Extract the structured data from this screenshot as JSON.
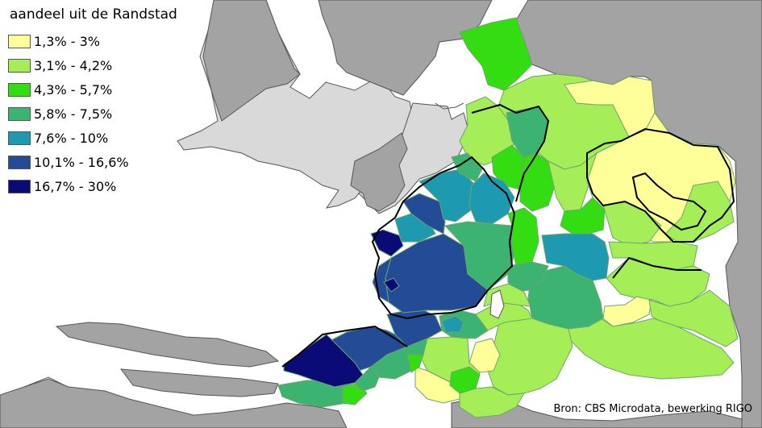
{
  "legend": {
    "title": "aandeel uit de Randstad",
    "classes": [
      {
        "label": "1,3% - 3%",
        "color": "#ffff99"
      },
      {
        "label": "3,1% - 4,2%",
        "color": "#a6ee57"
      },
      {
        "label": "4,3% - 5,7%",
        "color": "#33dd11"
      },
      {
        "label": "5,8% - 7,5%",
        "color": "#3cb371"
      },
      {
        "label": "7,6% - 10%",
        "color": "#1e9ab0"
      },
      {
        "label": "10,1% - 16,6%",
        "color": "#234b96"
      },
      {
        "label": "16,7% - 30%",
        "color": "#0b0b78"
      }
    ]
  },
  "source": "Bron: CBS Microdata, bewerking RIGO",
  "colors": {
    "land": "#a3a3a3",
    "land_light": "#d9d9d9",
    "water": "#ffffff",
    "border": "#000000"
  }
}
